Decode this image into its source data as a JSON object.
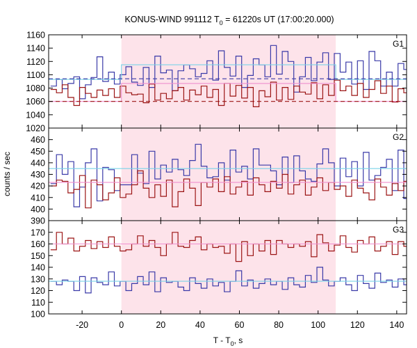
{
  "title_main": "KONUS-WIND 991112 T",
  "title_sub": "0",
  "title_rest": " = 61220s UT (17:00:20.000)",
  "ylabel": "counts / sec",
  "xlabel_main": "T - T",
  "xlabel_sub": "0",
  "xlabel_rest": ", s",
  "colors": {
    "blue": "#3a3aa8",
    "red": "#9b1414",
    "cyan": "#7ad3e8",
    "pink": "#f08fcf",
    "shade": "#fde3ea"
  },
  "chart_data": [
    {
      "type": "line",
      "panel": "G1",
      "x_range": [
        -37,
        145
      ],
      "ylim": [
        1020,
        1160
      ],
      "yticks": [
        1020,
        1040,
        1060,
        1080,
        1100,
        1120,
        1140,
        1160
      ],
      "xticks": [
        -20,
        0,
        20,
        40,
        60,
        80,
        100,
        120,
        140
      ],
      "shaded_interval": [
        0,
        109
      ],
      "bin_start": -36,
      "bin_width": 2.944,
      "series": [
        {
          "color": "blue",
          "style": "step",
          "values": [
            1083,
            1093,
            1079,
            1087,
            1097,
            1064,
            1085,
            1096,
            1127,
            1090,
            1104,
            1086,
            1100,
            1112,
            1089,
            1084,
            1111,
            1081,
            1128,
            1103,
            1107,
            1076,
            1106,
            1115,
            1109,
            1097,
            1102,
            1121,
            1092,
            1136,
            1111,
            1098,
            1128,
            1081,
            1099,
            1124,
            1115,
            1097,
            1144,
            1101,
            1135,
            1120,
            1074,
            1097,
            1126,
            1091,
            1119,
            1133,
            1093,
            1132,
            1104,
            1119,
            1086,
            1121,
            1078,
            1135,
            1121,
            1083,
            1104,
            1083,
            1117,
            1108,
            1098,
            1090,
            1098,
            1079,
            1111,
            1104,
            1097,
            1108,
            1103,
            1082,
            1086,
            1105,
            1093,
            1088,
            1098,
            1102,
            1085,
            1098,
            1117,
            1096,
            1089,
            1103,
            1076,
            1096,
            1083,
            1099,
            1087,
            1099,
            1080,
            1102,
            1087,
            1110,
            1091,
            1098,
            1084,
            1109,
            1102,
            1094,
            1092,
            1098,
            1086,
            1099,
            1094,
            1105,
            1083,
            1095,
            1086,
            1108,
            1092,
            1101,
            1093
          ]
        },
        {
          "color": "red",
          "style": "step",
          "values": [
            1078,
            1073,
            1085,
            1066,
            1054,
            1081,
            1072,
            1066,
            1077,
            1069,
            1079,
            1066,
            1083,
            1073,
            1070,
            1071,
            1058,
            1086,
            1062,
            1072,
            1064,
            1076,
            1081,
            1062,
            1077,
            1070,
            1083,
            1066,
            1078,
            1054,
            1087,
            1068,
            1084,
            1065,
            1081,
            1052,
            1076,
            1067,
            1089,
            1062,
            1081,
            1063,
            1083,
            1074,
            1071,
            1088,
            1064,
            1085,
            1069,
            1092,
            1076,
            1083,
            1069,
            1087,
            1066,
            1078,
            1091,
            1072,
            1083,
            1059,
            1079,
            1073,
            1089,
            1069,
            1080,
            1063,
            1081,
            1075,
            1066,
            1084,
            1058,
            1077,
            1062,
            1081,
            1073,
            1066,
            1087,
            1068,
            1075,
            1058,
            1083,
            1067,
            1073,
            1062,
            1080,
            1065,
            1074,
            1059,
            1067,
            1072,
            1063,
            1070,
            1061,
            1075,
            1064,
            1068,
            1060,
            1072,
            1066,
            1074,
            1063,
            1069,
            1058,
            1071,
            1066,
            1061,
            1073,
            1064,
            1070,
            1056,
            1068,
            1066,
            1075
          ]
        },
        {
          "color": "cyan",
          "style": "piecewise",
          "segments": [
            {
              "x": [
                -37,
                0
              ],
              "y": 1093
            },
            {
              "x": [
                0,
                109
              ],
              "y": 1115
            },
            {
              "x": [
                109,
                145
              ],
              "y": 1093
            }
          ]
        },
        {
          "color": "pink",
          "style": "piecewise",
          "segments": [
            {
              "x": [
                -37,
                0
              ],
              "y": 1060
            },
            {
              "x": [
                0,
                109
              ],
              "y": 1087
            },
            {
              "x": [
                109,
                145
              ],
              "y": 1060
            }
          ]
        },
        {
          "color": "blue",
          "style": "dashed",
          "y": 1094
        },
        {
          "color": "red",
          "style": "dashed",
          "y": 1060
        }
      ]
    },
    {
      "type": "line",
      "panel": "G2",
      "x_range": [
        -37,
        145
      ],
      "ylim": [
        390,
        470
      ],
      "yticks": [
        390,
        400,
        410,
        420,
        430,
        440,
        450,
        460
      ],
      "xticks": [
        -20,
        0,
        20,
        40,
        60,
        80,
        100,
        120,
        140
      ],
      "shaded_interval": [
        0,
        109
      ],
      "bin_start": -36,
      "bin_width": 2.944,
      "series": [
        {
          "color": "blue",
          "style": "step",
          "values": [
            422,
            447,
            430,
            441,
            402,
            419,
            440,
            452,
            407,
            436,
            434,
            416,
            421,
            421,
            447,
            431,
            422,
            450,
            426,
            438,
            432,
            443,
            434,
            429,
            442,
            456,
            437,
            427,
            428,
            440,
            425,
            451,
            432,
            437,
            426,
            452,
            438,
            438,
            433,
            421,
            445,
            423,
            446,
            433,
            426,
            424,
            439,
            452,
            440,
            420,
            444,
            428,
            441,
            420,
            449,
            425,
            429,
            436,
            443,
            416,
            451,
            409,
            439,
            419,
            433,
            438,
            422,
            450,
            464,
            416,
            421,
            436,
            442,
            422,
            447,
            440,
            414,
            433,
            446,
            433,
            439,
            420,
            448,
            424,
            435,
            428,
            441,
            421,
            452,
            438,
            433,
            443,
            426,
            436,
            422,
            441,
            434,
            445,
            423,
            438,
            429,
            417,
            447,
            440,
            427,
            435,
            418,
            428,
            413,
            428,
            426,
            423,
            422
          ]
        },
        {
          "color": "red",
          "style": "step",
          "values": [
            420,
            425,
            424,
            414,
            417,
            429,
            401,
            425,
            421,
            408,
            414,
            427,
            410,
            413,
            421,
            433,
            418,
            410,
            421,
            411,
            425,
            402,
            415,
            426,
            418,
            403,
            423,
            419,
            426,
            415,
            428,
            413,
            419,
            424,
            412,
            427,
            421,
            415,
            424,
            418,
            430,
            413,
            421,
            425,
            412,
            419,
            427,
            416,
            423,
            417,
            420,
            411,
            425,
            418,
            414,
            408,
            426,
            419,
            412,
            422,
            416,
            424,
            430,
            409,
            418,
            423,
            415,
            421,
            413,
            426,
            419,
            404,
            426,
            410,
            416,
            425,
            412,
            420,
            417,
            429,
            408,
            420,
            410,
            424,
            415,
            421,
            412,
            418,
            425,
            402,
            418,
            427,
            411,
            416,
            421,
            409,
            418,
            424,
            413,
            420,
            405,
            418,
            427,
            412,
            416,
            421,
            410,
            419,
            425,
            413,
            417,
            411,
            423
          ]
        },
        {
          "color": "cyan",
          "style": "piecewise",
          "segments": [
            {
              "x": [
                -37,
                0
              ],
              "y": 435
            },
            {
              "x": [
                0,
                109
              ],
              "y": 435
            },
            {
              "x": [
                109,
                145
              ],
              "y": 435
            }
          ]
        },
        {
          "color": "pink",
          "style": "piecewise",
          "segments": [
            {
              "x": [
                -37,
                0
              ],
              "y": 423
            },
            {
              "x": [
                0,
                109
              ],
              "y": 423
            },
            {
              "x": [
                109,
                145
              ],
              "y": 423
            }
          ]
        }
      ]
    },
    {
      "type": "line",
      "panel": "G3",
      "x_range": [
        -37,
        145
      ],
      "ylim": [
        100,
        180
      ],
      "yticks": [
        100,
        110,
        120,
        130,
        140,
        150,
        160,
        170
      ],
      "xticks": [
        -20,
        0,
        20,
        40,
        60,
        80,
        100,
        120,
        140
      ],
      "shaded_interval": [
        0,
        109
      ],
      "bin_start": -36,
      "bin_width": 2.944,
      "series": [
        {
          "color": "red",
          "style": "step",
          "values": [
            155,
            170,
            160,
            165,
            154,
            158,
            163,
            156,
            162,
            157,
            166,
            158,
            154,
            155,
            160,
            167,
            158,
            163,
            157,
            150,
            160,
            170,
            158,
            157,
            163,
            166,
            155,
            160,
            157,
            158,
            152,
            160,
            145,
            162,
            150,
            160,
            154,
            163,
            151,
            163,
            160,
            157,
            160,
            158,
            162,
            149,
            168,
            161,
            154,
            159,
            167,
            157,
            153,
            163,
            160,
            166,
            154,
            158,
            162,
            151,
            162,
            158,
            161,
            165,
            157,
            160,
            163,
            153,
            157,
            162,
            160,
            165,
            155,
            157,
            166,
            159,
            154,
            161,
            167,
            159,
            160,
            158,
            165,
            161,
            156,
            163,
            154,
            160,
            168,
            158,
            161,
            156,
            164,
            157,
            163,
            161,
            154,
            160,
            165,
            162,
            157,
            166,
            160,
            158,
            165,
            161,
            163,
            157,
            161,
            160,
            158,
            166,
            164
          ]
        },
        {
          "color": "blue",
          "style": "step",
          "values": [
            128,
            125,
            129,
            128,
            120,
            132,
            118,
            131,
            127,
            125,
            136,
            124,
            128,
            120,
            126,
            132,
            125,
            136,
            119,
            131,
            127,
            128,
            123,
            120,
            131,
            126,
            122,
            130,
            124,
            127,
            119,
            128,
            137,
            124,
            129,
            122,
            126,
            130,
            125,
            128,
            121,
            131,
            125,
            123,
            133,
            127,
            140,
            129,
            124,
            128,
            131,
            125,
            120,
            133,
            126,
            122,
            135,
            127,
            129,
            123,
            130,
            125,
            128,
            132,
            122,
            127,
            135,
            126,
            121,
            131,
            124,
            129,
            127,
            133,
            122,
            128,
            126,
            131,
            125,
            129,
            120,
            135,
            127,
            124,
            130,
            126,
            128,
            122,
            131,
            124,
            127,
            129,
            123,
            132,
            126,
            125,
            139,
            118,
            130,
            124,
            128,
            135,
            121,
            127,
            131,
            125,
            129,
            123,
            126,
            132,
            124,
            128,
            127
          ]
        },
        {
          "color": "cyan",
          "style": "piecewise",
          "segments": [
            {
              "x": [
                -37,
                0
              ],
              "y": 128
            },
            {
              "x": [
                0,
                109
              ],
              "y": 128
            },
            {
              "x": [
                109,
                145
              ],
              "y": 128
            }
          ]
        },
        {
          "color": "pink",
          "style": "piecewise",
          "segments": [
            {
              "x": [
                -37,
                0
              ],
              "y": 160
            },
            {
              "x": [
                0,
                109
              ],
              "y": 160
            },
            {
              "x": [
                109,
                145
              ],
              "y": 160
            }
          ]
        }
      ]
    }
  ],
  "panel_labels": [
    "G1",
    "G2",
    "G3"
  ],
  "xtick_labels": [
    "-20",
    "0",
    "20",
    "40",
    "60",
    "80",
    "100",
    "120",
    "140"
  ],
  "ytick_labels": [
    [
      "1020",
      "1040",
      "1060",
      "1080",
      "1100",
      "1120",
      "1140",
      "1160"
    ],
    [
      "390",
      "400",
      "410",
      "420",
      "430",
      "440",
      "450",
      "460"
    ],
    [
      "100",
      "110",
      "120",
      "130",
      "140",
      "150",
      "160",
      "170"
    ]
  ]
}
